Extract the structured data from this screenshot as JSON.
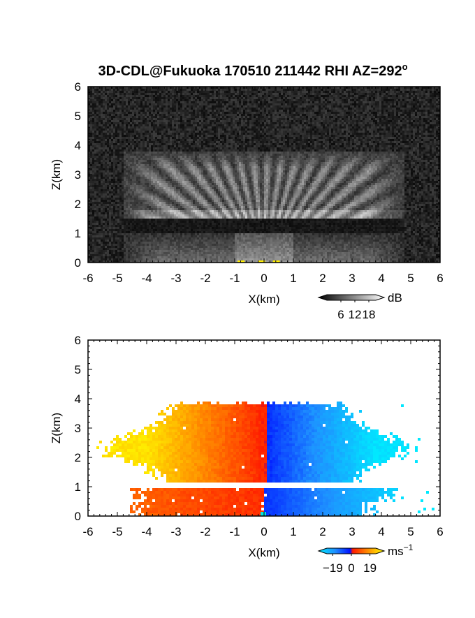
{
  "figure": {
    "title": "3D-CDL@Fukuoka 170510 211442 RHI AZ=292",
    "title_degree": "o"
  },
  "chart_data": [
    {
      "type": "heatmap",
      "panel": "top",
      "title": "3D-CDL@Fukuoka 170510 211442 RHI AZ=292°",
      "xlabel": "X(km)",
      "ylabel": "Z(km)",
      "xlim": [
        -6,
        6
      ],
      "ylim": [
        0,
        6
      ],
      "xticks": [
        "-6",
        "-5",
        "-4",
        "-3",
        "-2",
        "-1",
        "0",
        "1",
        "2",
        "3",
        "4",
        "5",
        "6"
      ],
      "yticks": [
        "0",
        "1",
        "2",
        "3",
        "4",
        "5",
        "6"
      ],
      "colorbar": {
        "unit": "dB",
        "ticks": [
          "6",
          "12",
          "18"
        ],
        "range": [
          0,
          21
        ],
        "colormap": "gray",
        "over_color": "#ffee00"
      },
      "field": {
        "description_values": {
          "background": 3,
          "aerosol_layer_top_km": 3.8,
          "dark_band_km": [
            1.0,
            1.5
          ],
          "lower_layer_top_km": 1.0,
          "max_value": 18
        }
      }
    },
    {
      "type": "heatmap",
      "panel": "bottom",
      "xlabel": "X(km)",
      "ylabel": "Z(km)",
      "xlim": [
        -6,
        6
      ],
      "ylim": [
        0,
        6
      ],
      "xticks": [
        "-6",
        "-5",
        "-4",
        "-3",
        "-2",
        "-1",
        "0",
        "1",
        "2",
        "3",
        "4",
        "5",
        "6"
      ],
      "yticks": [
        "0",
        "1",
        "2",
        "3",
        "4",
        "5",
        "6"
      ],
      "colorbar": {
        "unit": "ms",
        "unit_exponent": "−1",
        "ticks": [
          "−19",
          "0",
          "19"
        ],
        "range": [
          -25,
          25
        ],
        "colormap": "cyan-blue-red-orange-yellow"
      },
      "field": {
        "upper_layer_z_km": [
          1.15,
          3.9
        ],
        "upper_layer_x_km": [
          -5.9,
          5.3
        ],
        "lower_layer_z_km": [
          0.0,
          0.95
        ],
        "lower_layer_x_km": [
          -4.6,
          5.8
        ],
        "sign_change_x_km": 0.05
      }
    }
  ]
}
